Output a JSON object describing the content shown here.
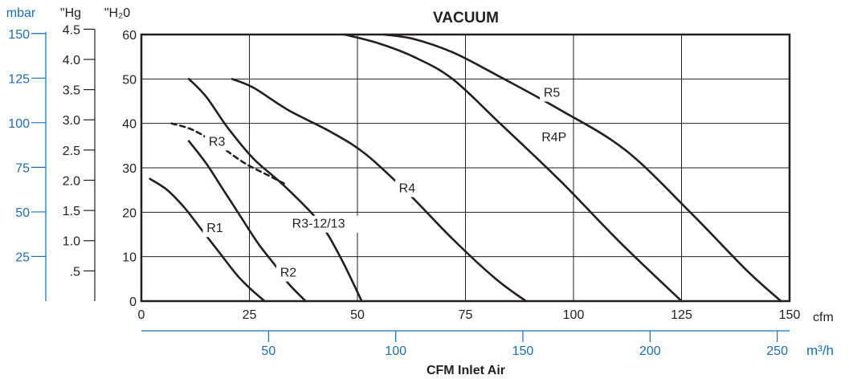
{
  "chart_data": {
    "type": "line",
    "title": "VACUUM",
    "xlabel": "CFM Inlet Air",
    "x_unit": "cfm",
    "x_ticks": [
      "0",
      "25",
      "50",
      "75",
      "100",
      "125",
      "150"
    ],
    "xlim": [
      0,
      150
    ],
    "x2_unit": "m³/h",
    "x2_ticks": [
      "50",
      "100",
      "150",
      "200",
      "250"
    ],
    "y_unit": "\"H₂0",
    "y_ticks": [
      "0",
      "10",
      "20",
      "30",
      "40",
      "50",
      "60"
    ],
    "ylim": [
      0,
      60
    ],
    "y2_unit": "\"Hg",
    "y2_ticks": [
      ".5",
      "1.0",
      "1.5",
      "2.0",
      "2.5",
      "3.0",
      "3.5",
      "4.0",
      "4.5"
    ],
    "y3_unit": "mbar",
    "y3_ticks": [
      "25",
      "50",
      "75",
      "100",
      "125",
      "150"
    ],
    "grid": true,
    "series": [
      {
        "name": "R1",
        "points": [
          [
            2,
            27.5
          ],
          [
            6,
            25
          ],
          [
            10,
            21
          ],
          [
            14,
            16
          ],
          [
            18,
            11
          ],
          [
            22,
            6
          ],
          [
            25,
            3
          ],
          [
            28.5,
            0
          ]
        ]
      },
      {
        "name": "R2",
        "points": [
          [
            11,
            36
          ],
          [
            15,
            31
          ],
          [
            19,
            25
          ],
          [
            23,
            19
          ],
          [
            27,
            13
          ],
          [
            31,
            8
          ],
          [
            34,
            4
          ],
          [
            38,
            0
          ]
        ]
      },
      {
        "name": "R3",
        "dashed": true,
        "points": [
          [
            7,
            40
          ],
          [
            12,
            38.5
          ],
          [
            18,
            35
          ],
          [
            24,
            31
          ],
          [
            30,
            28
          ],
          [
            33,
            26.5
          ]
        ]
      },
      {
        "name": "R3-12/13",
        "points": [
          [
            11,
            50
          ],
          [
            15,
            46
          ],
          [
            20,
            39
          ],
          [
            26,
            32
          ],
          [
            33,
            26
          ],
          [
            41,
            18
          ],
          [
            46,
            10
          ],
          [
            51,
            0
          ]
        ]
      },
      {
        "name": "R4",
        "points": [
          [
            21,
            50
          ],
          [
            26,
            48
          ],
          [
            34,
            43
          ],
          [
            44,
            38
          ],
          [
            52,
            33
          ],
          [
            62,
            24
          ],
          [
            72,
            14
          ],
          [
            82,
            5
          ],
          [
            89,
            0
          ]
        ]
      },
      {
        "name": "R4P",
        "points": [
          [
            47,
            60
          ],
          [
            55,
            58
          ],
          [
            63,
            55
          ],
          [
            72,
            50
          ],
          [
            83,
            40
          ],
          [
            97,
            27
          ],
          [
            111,
            13
          ],
          [
            125,
            0
          ]
        ]
      },
      {
        "name": "R5",
        "points": [
          [
            56,
            60
          ],
          [
            63,
            59
          ],
          [
            72,
            56
          ],
          [
            82,
            51
          ],
          [
            97,
            43
          ],
          [
            112,
            34
          ],
          [
            127,
            20
          ],
          [
            140,
            7
          ],
          [
            148,
            0
          ]
        ]
      }
    ]
  },
  "colors": {
    "axis_black": "#231f20",
    "axis_blue": "#1a6db8",
    "curve": "#231f20"
  }
}
